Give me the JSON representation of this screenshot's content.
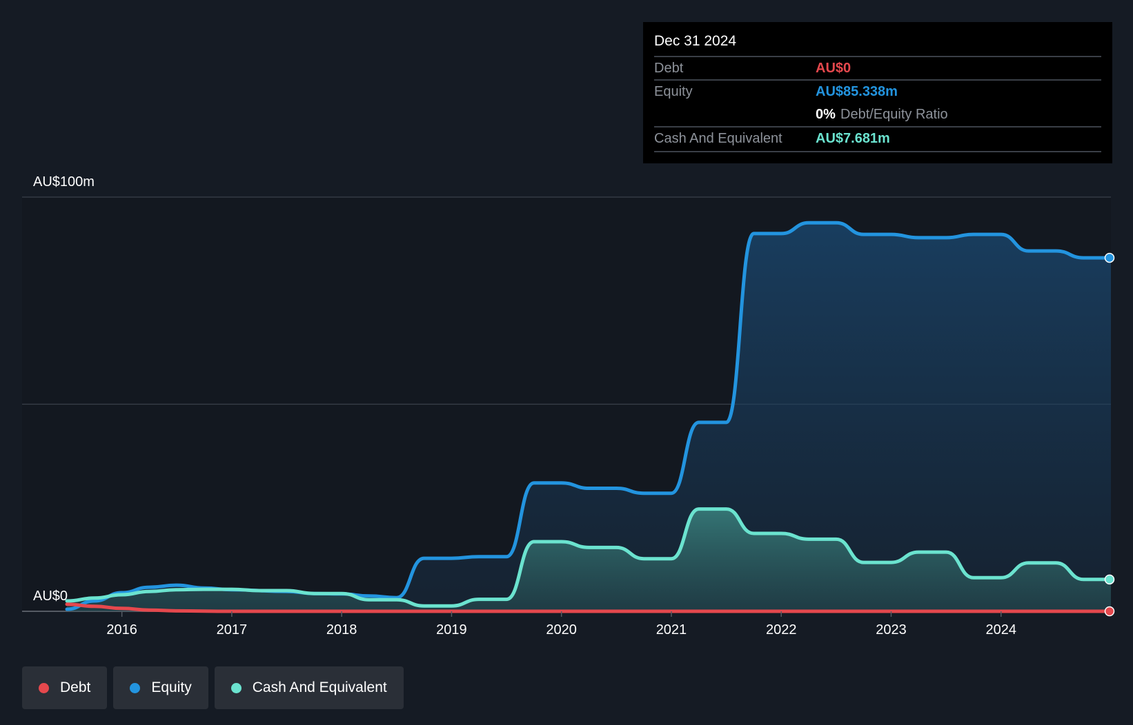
{
  "colors": {
    "debt": "#e5484d",
    "equity": "#2394df",
    "cash": "#6be3cf",
    "background": "#151b24",
    "plot_background": "#131820"
  },
  "tooltip": {
    "date": "Dec 31 2024",
    "debt_label": "Debt",
    "debt_value": "AU$0",
    "equity_label": "Equity",
    "equity_value": "AU$85.338m",
    "ratio_value": "0%",
    "ratio_label": "Debt/Equity Ratio",
    "cash_label": "Cash And Equivalent",
    "cash_value": "AU$7.681m"
  },
  "legend": [
    {
      "label": "Debt",
      "color": "#e5484d"
    },
    {
      "label": "Equity",
      "color": "#2394df"
    },
    {
      "label": "Cash And Equivalent",
      "color": "#6be3cf"
    }
  ],
  "chart_data": {
    "type": "area",
    "title": "",
    "xlabel": "",
    "ylabel": "",
    "y_tick_labels": [
      "AU$100m",
      "AU$0"
    ],
    "ylim": [
      0,
      100
    ],
    "xlim": [
      2015.5,
      2025.0
    ],
    "x_ticks": [
      2016,
      2017,
      2018,
      2019,
      2020,
      2021,
      2022,
      2023,
      2024
    ],
    "grid": "horizontal",
    "legend_position": "bottom-left",
    "series": [
      {
        "name": "Debt",
        "x": [
          2015.5,
          2015.75,
          2016.0,
          2016.25,
          2016.5,
          2017.0,
          2018.0,
          2019.0,
          2020.0,
          2021.0,
          2022.0,
          2023.0,
          2024.0,
          2025.0
        ],
        "y": [
          1.7,
          1.2,
          0.7,
          0.3,
          0.1,
          0,
          0,
          0,
          0,
          0,
          0,
          0,
          0,
          0
        ]
      },
      {
        "name": "Equity",
        "x": [
          2015.5,
          2015.75,
          2016.0,
          2016.25,
          2016.5,
          2016.75,
          2017.0,
          2017.5,
          2017.75,
          2018.0,
          2018.25,
          2018.5,
          2018.75,
          2019.0,
          2019.25,
          2019.5,
          2019.75,
          2020.0,
          2020.25,
          2020.5,
          2020.75,
          2021.0,
          2021.25,
          2021.5,
          2021.75,
          2022.0,
          2022.25,
          2022.5,
          2022.75,
          2023.0,
          2023.25,
          2023.5,
          2023.75,
          2024.0,
          2024.25,
          2024.5,
          2024.75,
          2025.0
        ],
        "y": [
          0.5,
          2.5,
          4.5,
          5.8,
          6.3,
          5.6,
          5.2,
          4.8,
          4.3,
          4.2,
          3.7,
          3.3,
          12.8,
          12.8,
          13.2,
          13.2,
          31.0,
          31.0,
          29.7,
          29.7,
          28.5,
          28.5,
          45.6,
          45.6,
          91.2,
          91.2,
          93.8,
          93.8,
          91.0,
          91.0,
          90.2,
          90.2,
          91.0,
          91.0,
          87.0,
          87.0,
          85.34,
          85.34
        ]
      },
      {
        "name": "Cash And Equivalent",
        "x": [
          2015.5,
          2015.75,
          2016.0,
          2016.25,
          2016.5,
          2016.75,
          2017.0,
          2017.25,
          2017.5,
          2017.75,
          2018.0,
          2018.25,
          2018.5,
          2018.75,
          2019.0,
          2019.25,
          2019.5,
          2019.75,
          2020.0,
          2020.25,
          2020.5,
          2020.75,
          2021.0,
          2021.25,
          2021.5,
          2021.75,
          2022.0,
          2022.25,
          2022.5,
          2022.75,
          2023.0,
          2023.25,
          2023.5,
          2023.75,
          2024.0,
          2024.25,
          2024.5,
          2024.75,
          2025.0
        ],
        "y": [
          2.5,
          3.2,
          4.0,
          4.8,
          5.2,
          5.3,
          5.3,
          5.0,
          5.0,
          4.3,
          4.3,
          2.8,
          2.8,
          1.3,
          1.3,
          2.9,
          2.9,
          16.8,
          16.8,
          15.4,
          15.4,
          12.7,
          12.7,
          24.7,
          24.7,
          18.8,
          18.8,
          17.4,
          17.4,
          11.8,
          11.8,
          14.3,
          14.3,
          8.1,
          8.1,
          11.7,
          11.7,
          7.68,
          7.68
        ]
      }
    ]
  }
}
